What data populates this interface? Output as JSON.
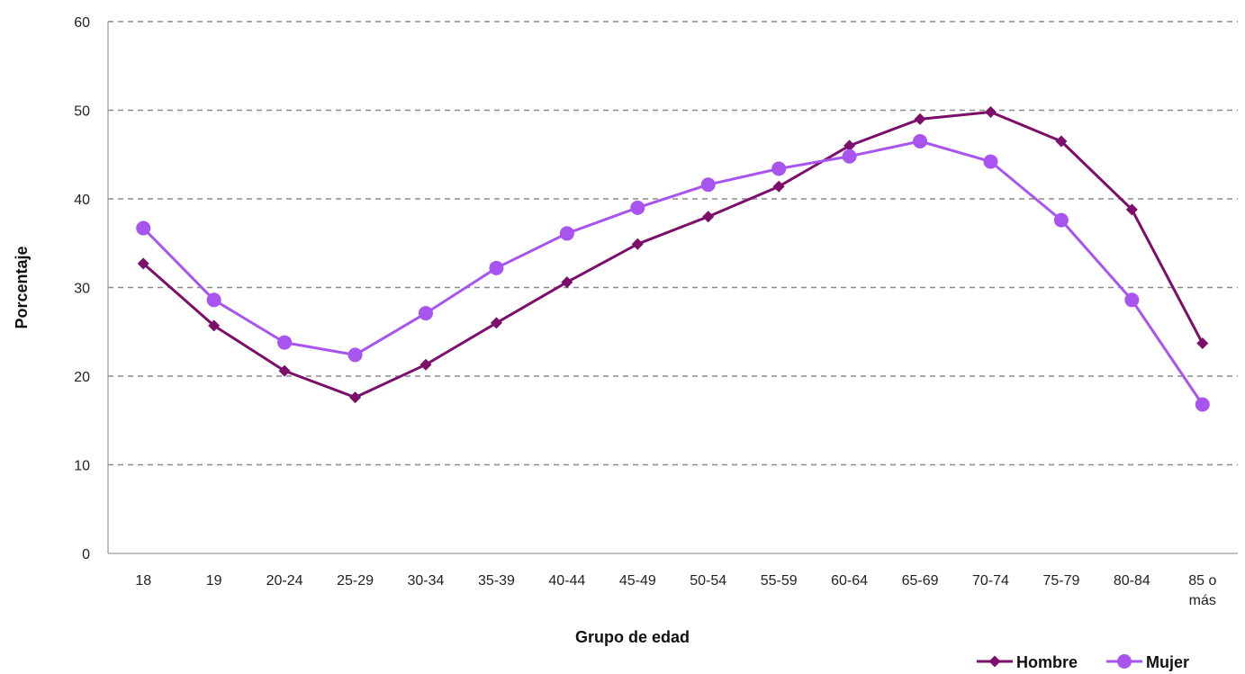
{
  "chart_data": {
    "type": "line",
    "title": "",
    "xlabel": "Grupo de edad",
    "ylabel": "Porcentaje",
    "ylim": [
      0,
      60
    ],
    "yticks": [
      0,
      10,
      20,
      30,
      40,
      50,
      60
    ],
    "grid": "horizontal-dashed",
    "legend_position": "bottom-right",
    "categories": [
      "18",
      "19",
      "20-24",
      "25-29",
      "30-34",
      "35-39",
      "40-44",
      "45-49",
      "50-54",
      "55-59",
      "60-64",
      "65-69",
      "70-74",
      "75-79",
      "80-84",
      "85 o más"
    ],
    "category_lines": [
      [
        "18"
      ],
      [
        "19"
      ],
      [
        "20-24"
      ],
      [
        "25-29"
      ],
      [
        "30-34"
      ],
      [
        "35-39"
      ],
      [
        "40-44"
      ],
      [
        "45-49"
      ],
      [
        "50-54"
      ],
      [
        "55-59"
      ],
      [
        "60-64"
      ],
      [
        "65-69"
      ],
      [
        "70-74"
      ],
      [
        "75-79"
      ],
      [
        "80-84"
      ],
      [
        "85 o",
        "más"
      ]
    ],
    "series": [
      {
        "name": "Hombre",
        "color": "#7b0f6b",
        "marker": "diamond",
        "values": [
          32.7,
          25.7,
          20.6,
          17.6,
          21.3,
          26.0,
          30.6,
          34.9,
          38.0,
          41.4,
          46.0,
          49.0,
          49.8,
          46.5,
          38.8,
          23.7
        ]
      },
      {
        "name": "Mujer",
        "color": "#a855ef",
        "marker": "circle",
        "values": [
          36.7,
          28.6,
          23.8,
          22.4,
          27.1,
          32.2,
          36.1,
          39.0,
          41.6,
          43.4,
          44.8,
          46.5,
          44.2,
          37.6,
          28.6,
          16.8
        ]
      }
    ]
  }
}
